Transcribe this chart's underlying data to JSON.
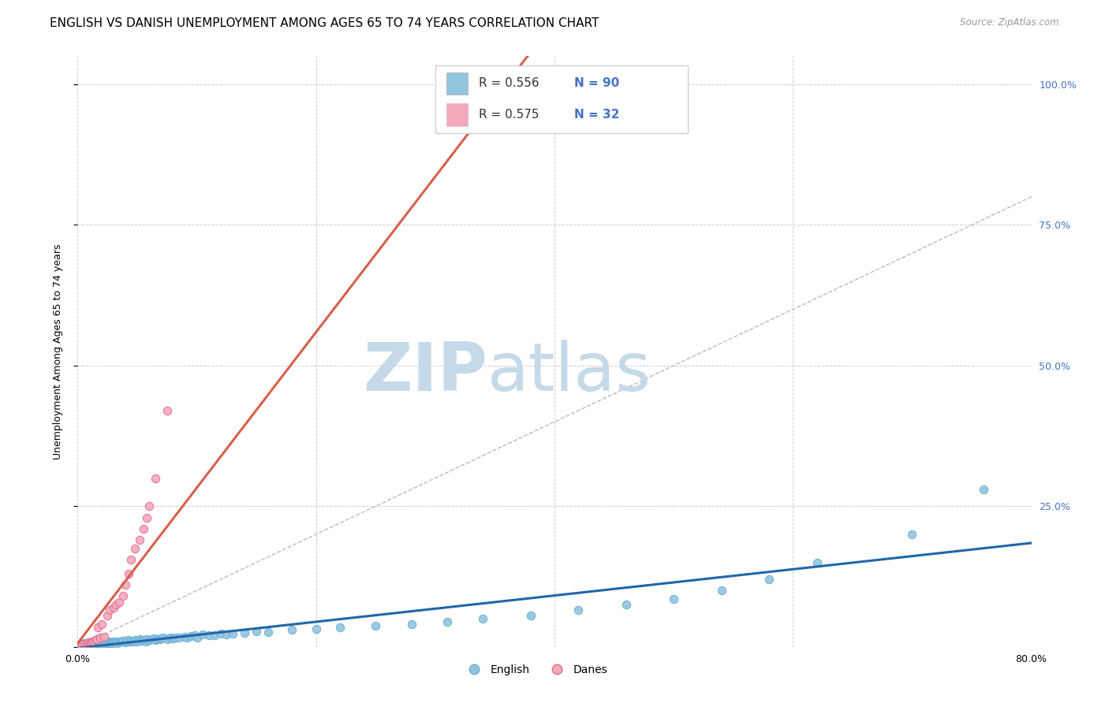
{
  "title": "ENGLISH VS DANISH UNEMPLOYMENT AMONG AGES 65 TO 74 YEARS CORRELATION CHART",
  "source": "Source: ZipAtlas.com",
  "ylabel": "Unemployment Among Ages 65 to 74 years",
  "xlim": [
    0,
    0.8
  ],
  "ylim": [
    0,
    1.05
  ],
  "english_color": "#92c5de",
  "english_edge_color": "#6baed6",
  "danes_color": "#f4a9bb",
  "danes_edge_color": "#e07090",
  "trend_english_color": "#2166ac",
  "trend_danes_color": "#d6604d",
  "diagonal_color": "#bbbbbb",
  "watermark_zip": "ZIP",
  "watermark_atlas": "atlas",
  "background_color": "#ffffff",
  "grid_color": "#cccccc",
  "right_tick_color": "#4472c4",
  "title_fontsize": 11,
  "axis_label_fontsize": 9,
  "tick_fontsize": 9,
  "watermark_color": "#c5d9e8",
  "legend_box_color": "#f0f4f8",
  "legend_edge_color": "#c0c8d0",
  "english_x": [
    0.0,
    0.003,
    0.005,
    0.007,
    0.008,
    0.009,
    0.01,
    0.01,
    0.011,
    0.012,
    0.013,
    0.014,
    0.015,
    0.016,
    0.017,
    0.018,
    0.019,
    0.02,
    0.021,
    0.022,
    0.023,
    0.025,
    0.026,
    0.027,
    0.028,
    0.029,
    0.03,
    0.031,
    0.032,
    0.033,
    0.035,
    0.036,
    0.037,
    0.038,
    0.04,
    0.041,
    0.042,
    0.044,
    0.045,
    0.047,
    0.048,
    0.05,
    0.052,
    0.053,
    0.055,
    0.057,
    0.058,
    0.06,
    0.062,
    0.064,
    0.065,
    0.067,
    0.069,
    0.07,
    0.072,
    0.075,
    0.078,
    0.08,
    0.082,
    0.085,
    0.09,
    0.092,
    0.095,
    0.098,
    0.1,
    0.105,
    0.11,
    0.115,
    0.12,
    0.125,
    0.13,
    0.14,
    0.15,
    0.16,
    0.18,
    0.2,
    0.22,
    0.25,
    0.28,
    0.31,
    0.34,
    0.38,
    0.42,
    0.46,
    0.5,
    0.54,
    0.58,
    0.62,
    0.7,
    0.76
  ],
  "english_y": [
    0.003,
    0.005,
    0.007,
    0.003,
    0.005,
    0.004,
    0.006,
    0.008,
    0.005,
    0.007,
    0.006,
    0.008,
    0.005,
    0.007,
    0.006,
    0.008,
    0.009,
    0.007,
    0.008,
    0.006,
    0.008,
    0.007,
    0.009,
    0.006,
    0.008,
    0.007,
    0.009,
    0.008,
    0.01,
    0.007,
    0.008,
    0.01,
    0.009,
    0.011,
    0.008,
    0.01,
    0.012,
    0.009,
    0.011,
    0.01,
    0.012,
    0.009,
    0.013,
    0.011,
    0.012,
    0.01,
    0.014,
    0.012,
    0.013,
    0.015,
    0.012,
    0.014,
    0.013,
    0.015,
    0.016,
    0.014,
    0.016,
    0.015,
    0.017,
    0.016,
    0.018,
    0.017,
    0.019,
    0.02,
    0.017,
    0.022,
    0.02,
    0.021,
    0.023,
    0.022,
    0.024,
    0.025,
    0.028,
    0.026,
    0.03,
    0.032,
    0.034,
    0.038,
    0.04,
    0.045,
    0.05,
    0.055,
    0.065,
    0.075,
    0.085,
    0.1,
    0.12,
    0.15,
    0.2,
    0.28
  ],
  "danes_x": [
    0.003,
    0.005,
    0.007,
    0.008,
    0.009,
    0.01,
    0.011,
    0.012,
    0.013,
    0.015,
    0.016,
    0.017,
    0.019,
    0.02,
    0.022,
    0.025,
    0.027,
    0.03,
    0.032,
    0.035,
    0.038,
    0.04,
    0.043,
    0.045,
    0.048,
    0.052,
    0.055,
    0.058,
    0.06,
    0.065,
    0.075,
    0.38
  ],
  "danes_y": [
    0.003,
    0.005,
    0.004,
    0.007,
    0.008,
    0.006,
    0.008,
    0.009,
    0.01,
    0.012,
    0.014,
    0.035,
    0.016,
    0.04,
    0.018,
    0.055,
    0.065,
    0.07,
    0.075,
    0.08,
    0.09,
    0.11,
    0.13,
    0.155,
    0.175,
    0.19,
    0.21,
    0.23,
    0.25,
    0.3,
    0.42,
    0.98
  ]
}
